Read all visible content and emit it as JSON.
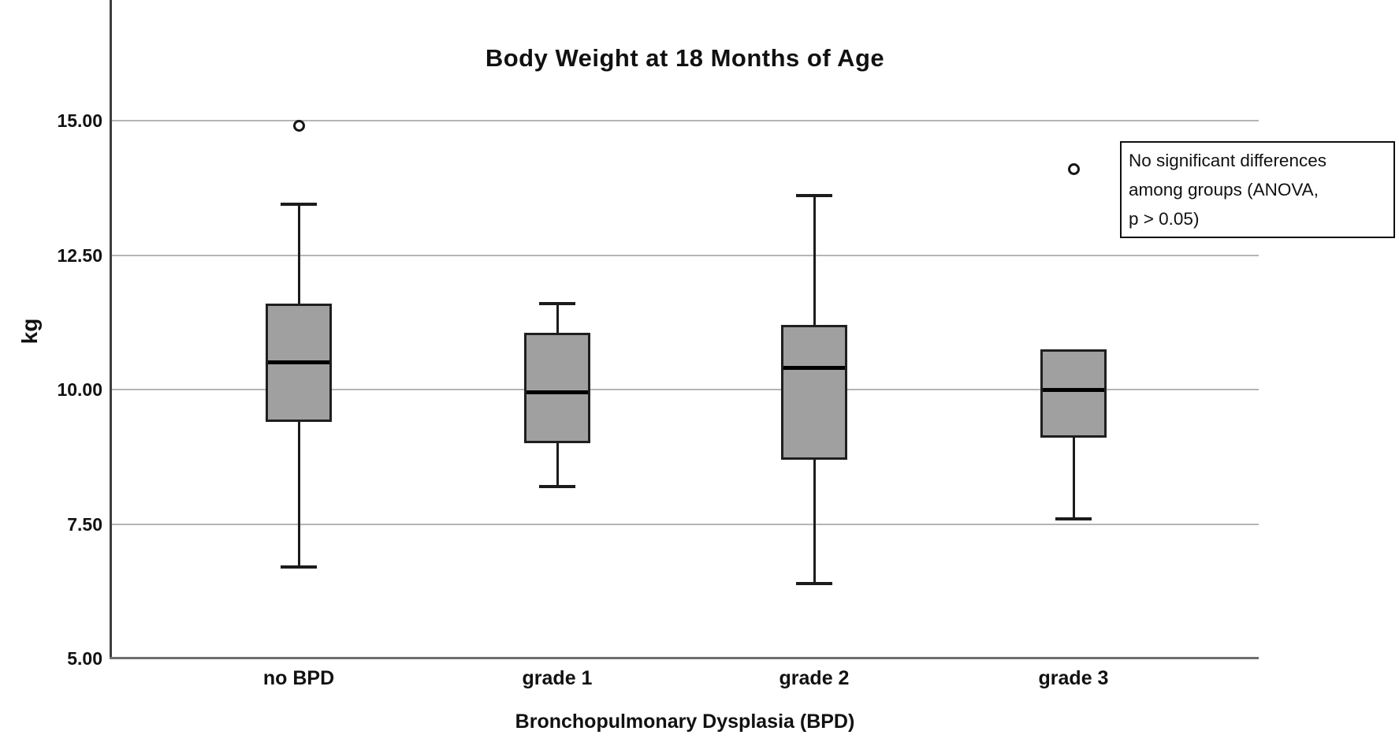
{
  "chart_data": {
    "type": "box",
    "title": "Body Weight at 18 Months of Age",
    "xlabel": "Bronchopulmonary Dysplasia (BPD)",
    "ylabel": "kg",
    "ylim": [
      5,
      15
    ],
    "grid": true,
    "yticks": [
      {
        "value": 15.0,
        "label": "15.00"
      },
      {
        "value": 12.5,
        "label": "12.50"
      },
      {
        "value": 10.0,
        "label": "10.00"
      },
      {
        "value": 7.5,
        "label": "7.50"
      },
      {
        "value": 5.0,
        "label": "5.00"
      }
    ],
    "categories": [
      "no BPD",
      "grade 1",
      "grade 2",
      "grade 3"
    ],
    "series": [
      {
        "category": "no BPD",
        "whisker_low": 6.7,
        "q1": 9.4,
        "median": 10.5,
        "q3": 11.6,
        "whisker_high": 13.45,
        "outliers": [
          14.9
        ]
      },
      {
        "category": "grade 1",
        "whisker_low": 8.2,
        "q1": 9.0,
        "median": 9.95,
        "q3": 11.05,
        "whisker_high": 11.6,
        "outliers": []
      },
      {
        "category": "grade 2",
        "whisker_low": 6.4,
        "q1": 8.7,
        "median": 10.4,
        "q3": 11.2,
        "whisker_high": 13.6,
        "outliers": []
      },
      {
        "category": "grade 3",
        "whisker_low": 7.6,
        "q1": 9.1,
        "median": 10.0,
        "q3": 10.75,
        "whisker_high": 10.75,
        "outliers": [
          14.1
        ]
      }
    ],
    "annotation": {
      "lines": [
        "No significant differences",
        "among groups (ANOVA,",
        "p > 0.05)"
      ]
    },
    "colors": {
      "box_fill": "#a0a0a0",
      "box_border": "#1f1f1f",
      "median": "#000000",
      "gridline": "#b5b5b5",
      "axis": "#3d3d3d",
      "text": "#111111",
      "background": "#ffffff"
    }
  }
}
